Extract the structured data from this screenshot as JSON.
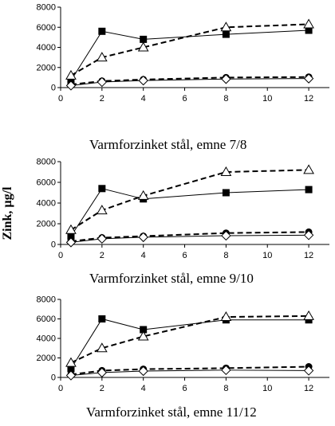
{
  "figure": {
    "ylabel": "Zink, µg/l"
  },
  "chart_data": [
    {
      "type": "line",
      "title": "Varmforzinket stål, emne 7/8",
      "x": [
        0.5,
        2,
        4,
        8,
        12
      ],
      "xlim": [
        0,
        13
      ],
      "xticks": [
        0,
        2,
        4,
        6,
        8,
        10,
        12
      ],
      "ylim": [
        0,
        8000
      ],
      "yticks": [
        0,
        2000,
        4000,
        6000,
        8000
      ],
      "series": [
        {
          "marker": "square-filled",
          "line": "solid",
          "values": [
            700,
            5600,
            4800,
            5300,
            5700
          ]
        },
        {
          "marker": "triangle-open",
          "line": "dashed",
          "values": [
            1200,
            3000,
            4000,
            6000,
            6300
          ]
        },
        {
          "marker": "circle-filled",
          "line": "dashed",
          "values": [
            300,
            650,
            800,
            1000,
            1050
          ]
        },
        {
          "marker": "diamond-open",
          "line": "solid",
          "values": [
            200,
            550,
            700,
            850,
            900
          ]
        }
      ]
    },
    {
      "type": "line",
      "title": "Varmforzinket stål, emne 9/10",
      "x": [
        0.5,
        2,
        4,
        8,
        12
      ],
      "xlim": [
        0,
        13
      ],
      "xticks": [
        0,
        2,
        4,
        6,
        8,
        10,
        12
      ],
      "ylim": [
        0,
        8000
      ],
      "yticks": [
        0,
        2000,
        4000,
        6000,
        8000
      ],
      "series": [
        {
          "marker": "square-filled",
          "line": "solid",
          "values": [
            800,
            5400,
            4400,
            5000,
            5300
          ]
        },
        {
          "marker": "triangle-open",
          "line": "dashed",
          "values": [
            1400,
            3300,
            4700,
            7000,
            7200
          ]
        },
        {
          "marker": "circle-filled",
          "line": "dashed",
          "values": [
            300,
            650,
            800,
            1100,
            1200
          ]
        },
        {
          "marker": "diamond-open",
          "line": "solid",
          "values": [
            200,
            550,
            700,
            850,
            900
          ]
        }
      ]
    },
    {
      "type": "line",
      "title": "Varmforzinket stål, emne 11/12",
      "x": [
        0.5,
        2,
        4,
        8,
        12
      ],
      "xlim": [
        0,
        13
      ],
      "xticks": [
        0,
        2,
        4,
        6,
        8,
        10,
        12
      ],
      "ylim": [
        0,
        8000
      ],
      "yticks": [
        0,
        2000,
        4000,
        6000,
        8000
      ],
      "series": [
        {
          "marker": "square-filled",
          "line": "solid",
          "values": [
            900,
            6000,
            4900,
            5900,
            5900
          ]
        },
        {
          "marker": "triangle-open",
          "line": "dashed",
          "values": [
            1500,
            3000,
            4200,
            6200,
            6300
          ]
        },
        {
          "marker": "circle-filled",
          "line": "dashed",
          "values": [
            300,
            700,
            850,
            950,
            1100
          ]
        },
        {
          "marker": "diamond-open",
          "line": "solid",
          "values": [
            200,
            500,
            650,
            750,
            700
          ]
        }
      ]
    }
  ]
}
